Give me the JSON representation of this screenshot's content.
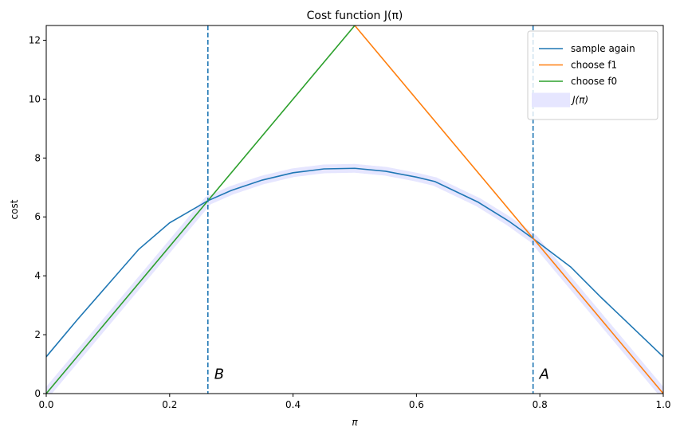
{
  "chart_data": {
    "type": "line",
    "title": "Cost function J(π)",
    "xlabel": "π",
    "ylabel": "cost",
    "xlim": [
      0,
      1
    ],
    "ylim": [
      0,
      12.5
    ],
    "xticks": [
      0.0,
      0.2,
      0.4,
      0.6,
      0.8,
      1.0
    ],
    "xtick_labels": [
      "0.0",
      "0.2",
      "0.4",
      "0.6",
      "0.8",
      "1.0"
    ],
    "yticks": [
      0,
      2,
      4,
      6,
      8,
      10,
      12
    ],
    "ytick_labels": [
      "0",
      "2",
      "4",
      "6",
      "8",
      "10",
      "12"
    ],
    "grid": false,
    "legend_placement": "upper-right",
    "series": [
      {
        "name": "sample again",
        "color": "#1f77b4",
        "x": [
          0,
          0.05,
          0.1,
          0.15,
          0.2,
          0.262,
          0.3,
          0.35,
          0.4,
          0.45,
          0.5,
          0.55,
          0.6,
          0.63,
          0.7,
          0.75,
          0.79,
          0.85,
          0.9,
          0.95,
          1.0
        ],
        "y": [
          1.25,
          2.5,
          3.7,
          4.9,
          5.8,
          6.55,
          6.9,
          7.25,
          7.5,
          7.63,
          7.65,
          7.55,
          7.35,
          7.2,
          6.5,
          5.85,
          5.25,
          4.3,
          3.25,
          2.25,
          1.25
        ]
      },
      {
        "name": "choose f1",
        "color": "#ff7f0e",
        "x": [
          0.5,
          1.0
        ],
        "y": [
          12.5,
          0
        ]
      },
      {
        "name": "choose f0",
        "color": "#2ca02c",
        "x": [
          0,
          0.5
        ],
        "y": [
          0,
          12.5
        ]
      },
      {
        "name": "J(π)",
        "color": "#e6e6ff",
        "description_of_values": "minimum of the three series"
      }
    ],
    "vlines": [
      {
        "x": 0.262,
        "label": "B",
        "color": "#1f77b4",
        "style": "dashed"
      },
      {
        "x": 0.789,
        "label": "A",
        "color": "#1f77b4",
        "style": "dashed"
      }
    ]
  }
}
